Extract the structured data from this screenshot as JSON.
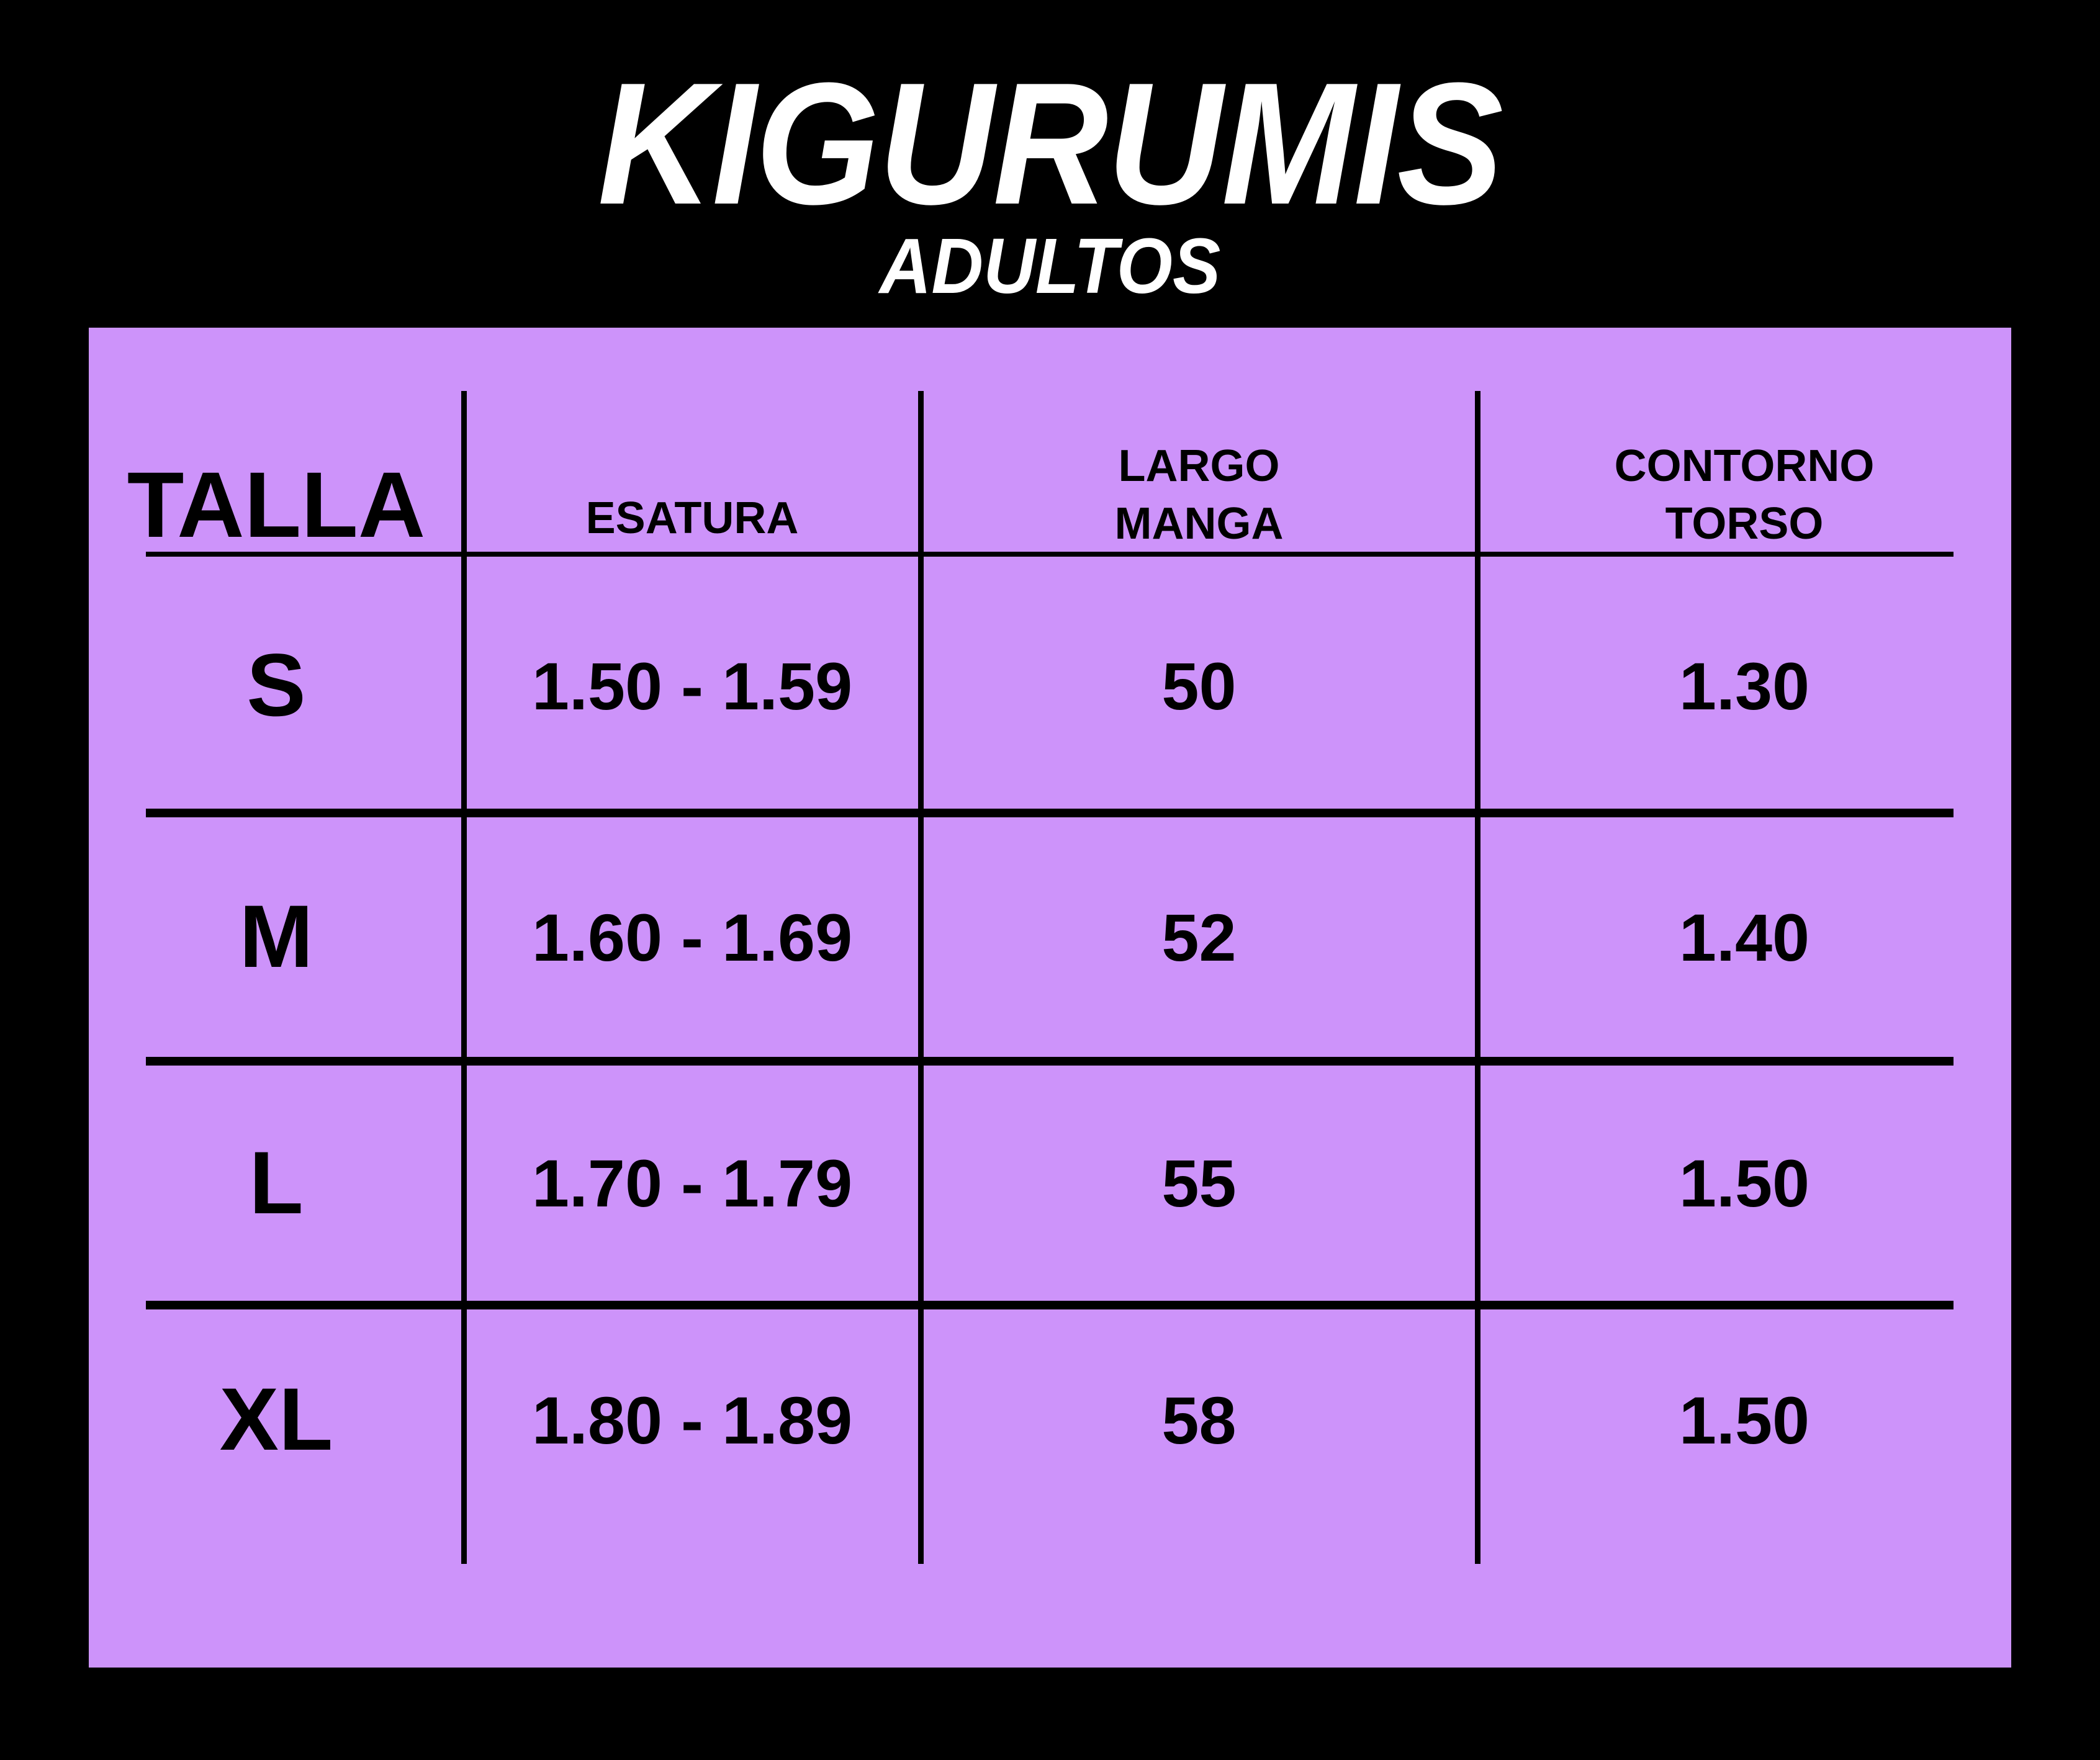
{
  "page": {
    "background_color": "#000000",
    "panel_color": "#cd93fa",
    "text_color_on_panel": "#000000",
    "title_color": "#ffffff"
  },
  "title": "KIGURUMIS",
  "subtitle": "ADULTOS",
  "table": {
    "headers": [
      {
        "line1": "TALLA"
      },
      {
        "line1": "ESATURA"
      },
      {
        "line1": "LARGO",
        "line2": "MANGA"
      },
      {
        "line1": "CONTORNO",
        "line2": "TORSO"
      }
    ],
    "rows": [
      {
        "size": "S",
        "estatura": "1.50 - 1.59",
        "largo_manga": "50",
        "contorno_torso": "1.30"
      },
      {
        "size": "M",
        "estatura": "1.60 - 1.69",
        "largo_manga": "52",
        "contorno_torso": "1.40"
      },
      {
        "size": "L",
        "estatura": "1.70 - 1.79",
        "largo_manga": "55",
        "contorno_torso": "1.50"
      },
      {
        "size": "XL",
        "estatura": "1.80 - 1.89",
        "largo_manga": "58",
        "contorno_torso": "1.50"
      }
    ]
  },
  "chart_data": {
    "type": "table",
    "title": "KIGURUMIS",
    "subtitle": "ADULTOS",
    "columns": [
      "TALLA",
      "ESATURA",
      "LARGO MANGA",
      "CONTORNO TORSO"
    ],
    "rows": [
      [
        "S",
        "1.50 - 1.59",
        50,
        1.3
      ],
      [
        "M",
        "1.60 - 1.69",
        52,
        1.4
      ],
      [
        "L",
        "1.70 - 1.79",
        55,
        1.5
      ],
      [
        "XL",
        "1.80 - 1.89",
        58,
        1.5
      ]
    ]
  }
}
